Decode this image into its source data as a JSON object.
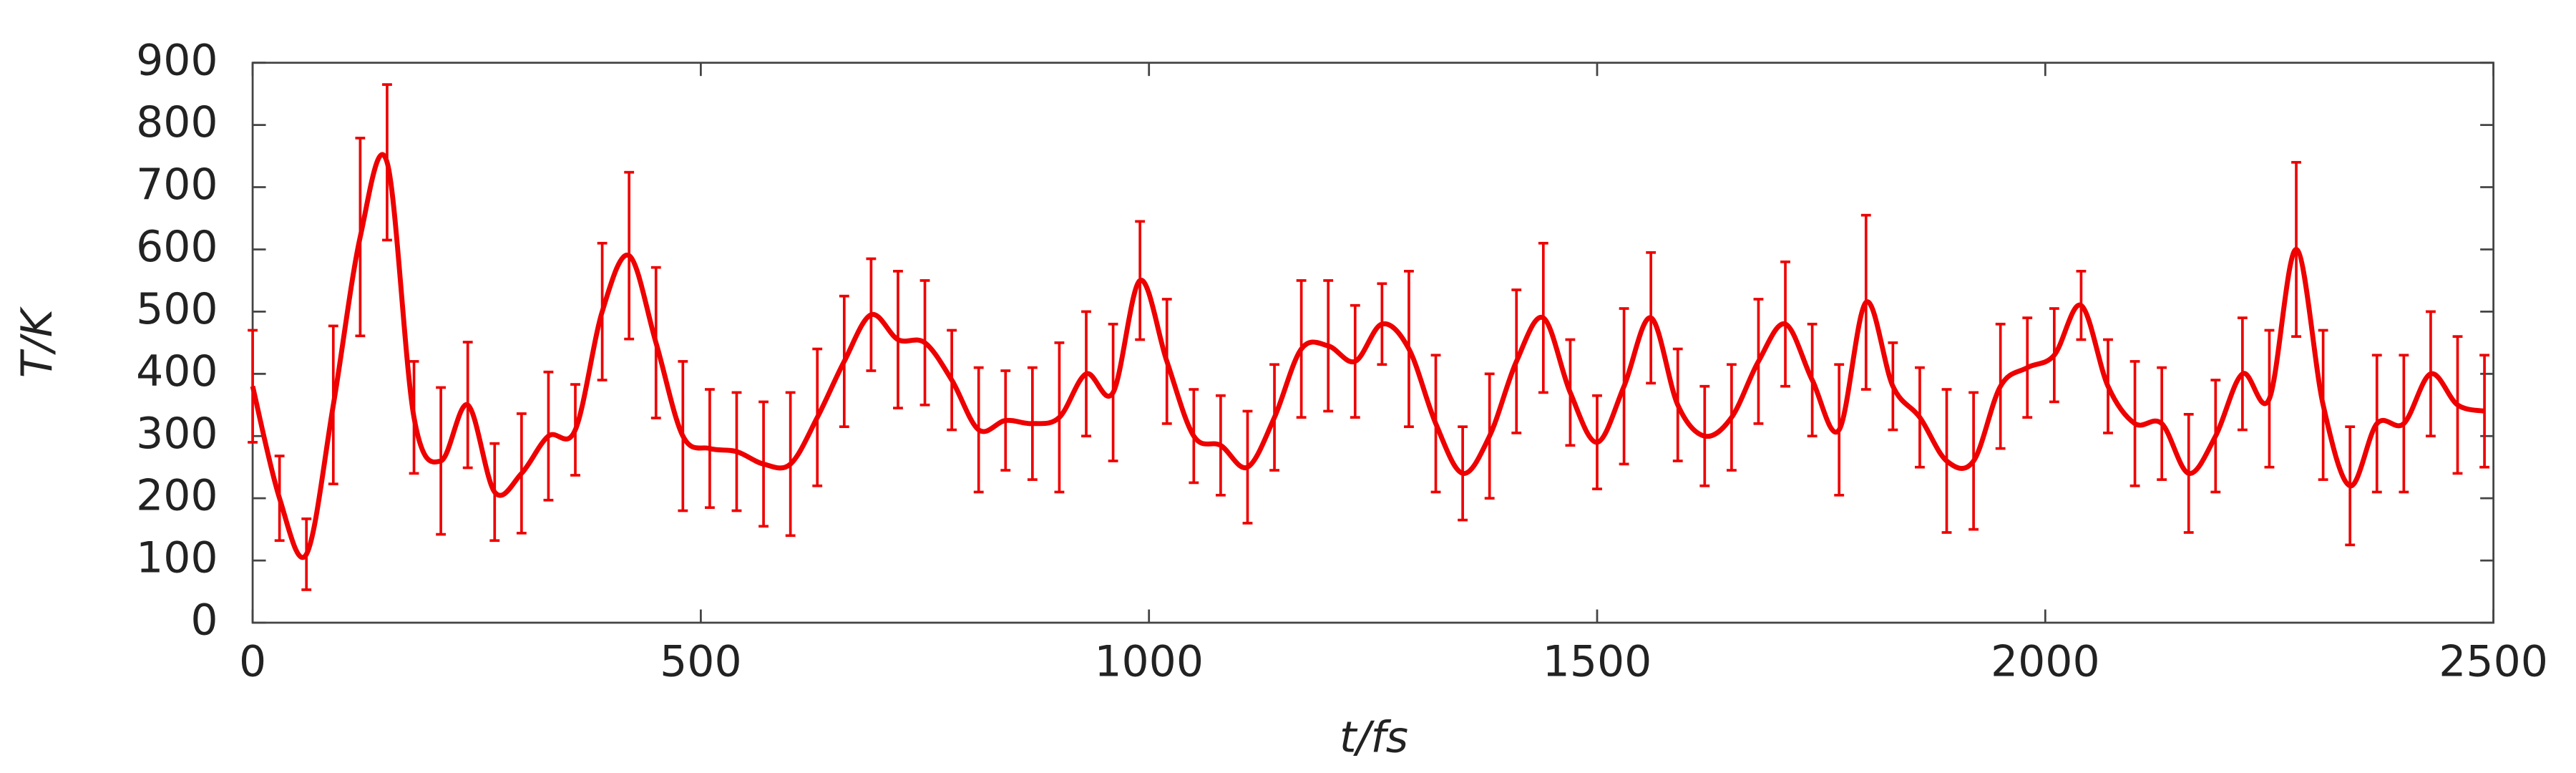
{
  "chart_data": {
    "type": "line",
    "x_label": "t/fs",
    "y_label": "T/K",
    "xlim": [
      0,
      2500
    ],
    "xticks": [
      0,
      500,
      1000,
      1500,
      2000,
      2500
    ],
    "ylim": [
      0,
      900
    ],
    "yticks": [
      0,
      100,
      200,
      300,
      400,
      500,
      600,
      700,
      800,
      900
    ],
    "grid": false,
    "x": [
      0,
      30,
      60,
      90,
      120,
      150,
      180,
      210,
      240,
      270,
      300,
      330,
      360,
      390,
      420,
      450,
      480,
      510,
      540,
      570,
      600,
      630,
      660,
      690,
      720,
      750,
      780,
      810,
      840,
      870,
      900,
      930,
      960,
      990,
      1020,
      1050,
      1080,
      1110,
      1140,
      1170,
      1200,
      1230,
      1260,
      1290,
      1320,
      1350,
      1380,
      1410,
      1440,
      1470,
      1500,
      1530,
      1560,
      1590,
      1620,
      1650,
      1680,
      1710,
      1740,
      1770,
      1800,
      1830,
      1860,
      1890,
      1920,
      1950,
      1980,
      2010,
      2040,
      2070,
      2100,
      2130,
      2160,
      2190,
      2220,
      2250,
      2280,
      2310,
      2340,
      2370,
      2400,
      2430,
      2460,
      2490
    ],
    "series": [
      {
        "color": "#ee0000",
        "smooth": true,
        "values": [
          380,
          200,
          110,
          350,
          620,
          740,
          330,
          260,
          350,
          210,
          240,
          300,
          310,
          500,
          590,
          450,
          300,
          280,
          275,
          255,
          255,
          330,
          420,
          495,
          455,
          450,
          390,
          310,
          325,
          320,
          330,
          400,
          370,
          550,
          420,
          300,
          285,
          250,
          330,
          440,
          445,
          420,
          480,
          440,
          320,
          240,
          300,
          420,
          490,
          370,
          290,
          380,
          490,
          350,
          300,
          330,
          420,
          480,
          390,
          310,
          515,
          380,
          330,
          260,
          260,
          380,
          410,
          430,
          510,
          380,
          320,
          320,
          240,
          300,
          400,
          360,
          600,
          350,
          220,
          320,
          320,
          400,
          350,
          340
        ],
        "errors": [
          90,
          68,
          57,
          127,
          159,
          125,
          90,
          118,
          101,
          78,
          96,
          103,
          73,
          110,
          134,
          121,
          120,
          95,
          95,
          100,
          115,
          110,
          105,
          90,
          110,
          100,
          80,
          100,
          80,
          90,
          120,
          100,
          110,
          95,
          100,
          75,
          80,
          90,
          85,
          110,
          105,
          90,
          65,
          125,
          110,
          75,
          100,
          115,
          120,
          85,
          75,
          125,
          105,
          90,
          80,
          85,
          100,
          100,
          90,
          105,
          140,
          70,
          80,
          115,
          110,
          100,
          80,
          75,
          55,
          75,
          100,
          90,
          95,
          90,
          90,
          110,
          140,
          120,
          95,
          110,
          110,
          100,
          110,
          90
        ]
      }
    ]
  }
}
